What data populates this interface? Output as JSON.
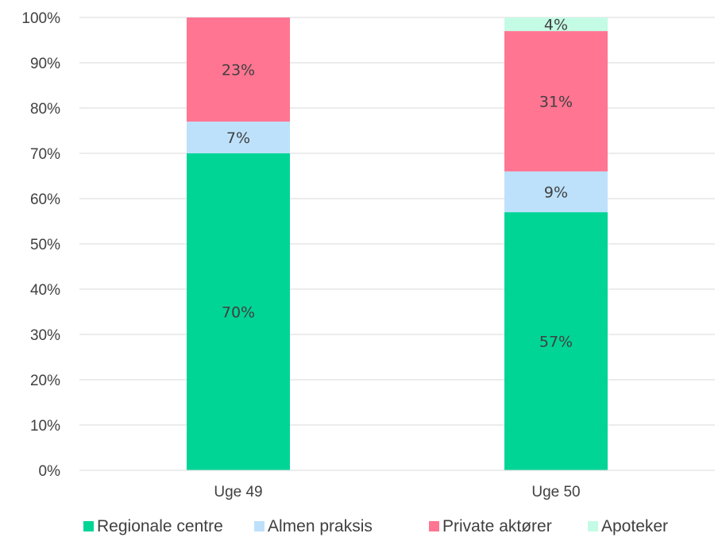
{
  "chart_data": {
    "type": "bar",
    "stacked": true,
    "categories": [
      "Uge 49",
      "Uge 50"
    ],
    "series": [
      {
        "name": "Regionale centre",
        "values": [
          70,
          57
        ],
        "labels": [
          "70%",
          "57%"
        ],
        "color": "#00d596"
      },
      {
        "name": "Almen praksis",
        "values": [
          7,
          9
        ],
        "labels": [
          "7%",
          "9%"
        ],
        "color": "#bde1fb"
      },
      {
        "name": "Private aktører",
        "values": [
          23,
          31
        ],
        "labels": [
          "23%",
          "31%"
        ],
        "color": "#ff7592"
      },
      {
        "name": "Apoteker",
        "values": [
          0,
          4
        ],
        "labels": [
          "",
          "4%"
        ],
        "color": "#c4fbe5"
      }
    ],
    "ylim": [
      0,
      100
    ],
    "yticks": [
      0,
      10,
      20,
      30,
      40,
      50,
      60,
      70,
      80,
      90,
      100
    ],
    "ytick_labels": [
      "0%",
      "10%",
      "20%",
      "30%",
      "40%",
      "50%",
      "60%",
      "70%",
      "80%",
      "90%",
      "100%"
    ],
    "grid": true,
    "legend": "bottom",
    "title": "",
    "xlabel": "",
    "ylabel": ""
  }
}
